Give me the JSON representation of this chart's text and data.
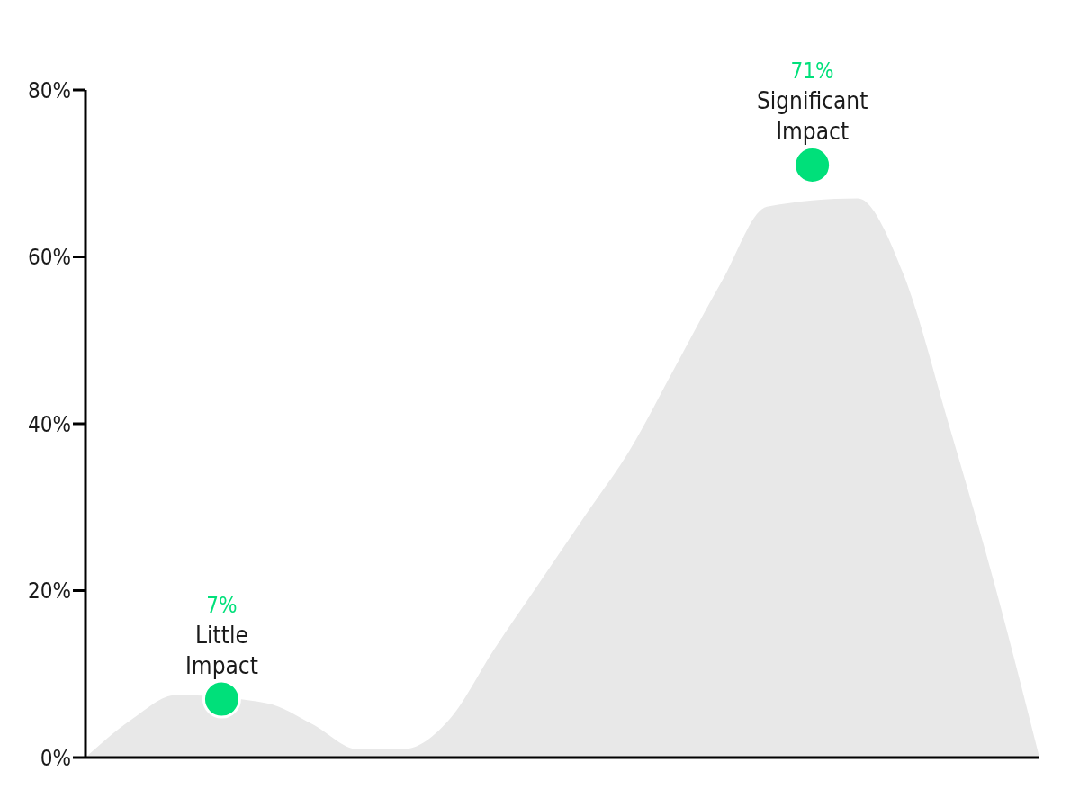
{
  "chart_data": {
    "type": "area",
    "categories": [
      null,
      null,
      null,
      null,
      null,
      null,
      null,
      null,
      null,
      null,
      null,
      null,
      null,
      null,
      null,
      null,
      null,
      null,
      null,
      null,
      null,
      null
    ],
    "series": [
      {
        "color": "#e8e8e8",
        "values": [
          0,
          4.5,
          7.5,
          null,
          6.5,
          4,
          1,
          1,
          4.5,
          13,
          21,
          29,
          37,
          47,
          57,
          66,
          null,
          67,
          58,
          40,
          21,
          0
        ]
      },
      {
        "type": "scatter",
        "color": "#00e07a",
        "marker": "circle",
        "values": [
          null,
          null,
          null,
          7,
          null,
          null,
          null,
          null,
          null,
          null,
          null,
          null,
          null,
          null,
          null,
          null,
          71,
          null,
          null,
          null,
          null,
          null
        ],
        "value_labels": [
          null,
          null,
          null,
          "7%",
          null,
          null,
          null,
          null,
          null,
          null,
          null,
          null,
          null,
          null,
          null,
          null,
          "71%",
          null,
          null,
          null,
          null,
          null
        ]
      }
    ],
    "annotations": [
      "Little Impact",
      "Significant Impact"
    ],
    "ylim": [
      0,
      80
    ],
    "yticks": [
      {
        "value": 0,
        "label": "0%"
      },
      {
        "value": 20,
        "label": "20%"
      },
      {
        "value": 40,
        "label": "40%"
      },
      {
        "value": 60,
        "label": "60%"
      },
      {
        "value": 80,
        "label": "80%"
      }
    ],
    "grid": false,
    "legend": false
  }
}
